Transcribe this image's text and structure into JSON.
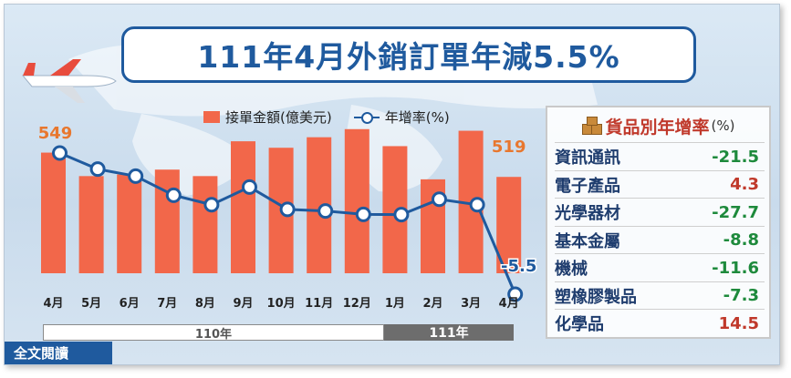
{
  "title": "111年4月外銷訂單年減5.5%",
  "legend": {
    "bar_label": "接單金額(億美元)",
    "line_label": "年增率(%)"
  },
  "year_labels": {
    "y110": "110年",
    "y111": "111年"
  },
  "full_text_link": "全文閱讀",
  "colors": {
    "bar": "#f2674a",
    "line": "#1f5a9e",
    "up": "#c0392b",
    "down": "#1e8a3c"
  },
  "chart_data": {
    "type": "bar",
    "categories": [
      "4月",
      "5月",
      "6月",
      "7月",
      "8月",
      "9月",
      "10月",
      "11月",
      "12月",
      "1月",
      "2月",
      "3月",
      "4月"
    ],
    "series": [
      {
        "name": "接單金額(億美元)",
        "type": "bar",
        "values": [
          549,
          520,
          522,
          528,
          520,
          563,
          555,
          568,
          578,
          557,
          516,
          576,
          519
        ]
      },
      {
        "name": "年增率(%)",
        "type": "line",
        "values": [
          42.6,
          34.6,
          31.1,
          21.6,
          16.9,
          25.7,
          14.6,
          13.8,
          12.1,
          12.0,
          19.6,
          16.9,
          -5.5
        ]
      }
    ],
    "data_labels": {
      "first_bar": "549",
      "last_bar": "519",
      "last_rate": "-5.5"
    },
    "grid": false,
    "legend_position": "top"
  },
  "category_growth": {
    "title": "貨品別年增率",
    "unit": "(%)",
    "rows": [
      {
        "name": "資訊通訊",
        "value": "-21.5",
        "trend": "down"
      },
      {
        "name": "電子產品",
        "value": "4.3",
        "trend": "up"
      },
      {
        "name": "光學器材",
        "value": "-27.7",
        "trend": "down"
      },
      {
        "name": "基本金屬",
        "value": "-8.8",
        "trend": "down"
      },
      {
        "name": "機械",
        "value": "-11.6",
        "trend": "down"
      },
      {
        "name": "塑橡膠製品",
        "value": "-7.3",
        "trend": "down"
      },
      {
        "name": "化學品",
        "value": "14.5",
        "trend": "up"
      }
    ]
  }
}
